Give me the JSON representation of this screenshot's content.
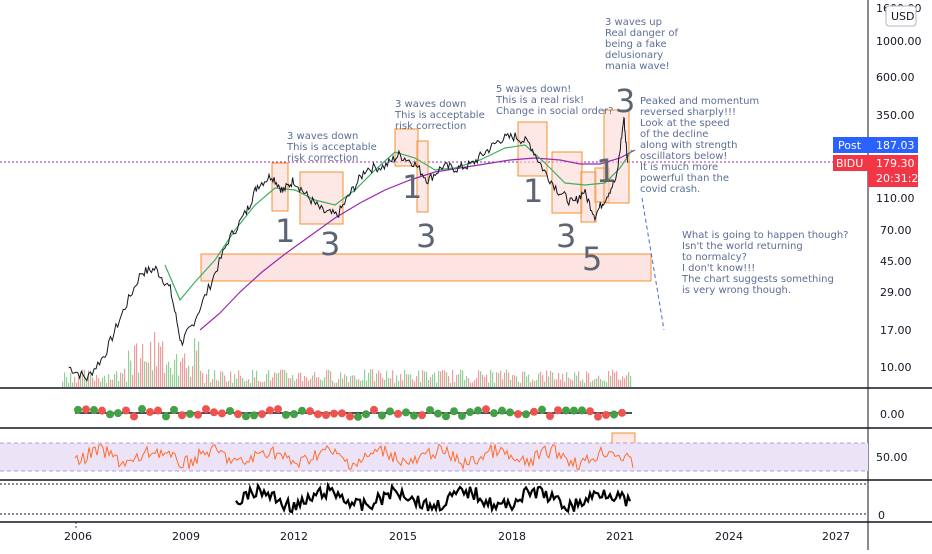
{
  "chart_data": [
    {
      "type": "line",
      "ticker": "BIDU",
      "currency": "USD",
      "price_scale": "log",
      "y_tick_labels": [
        "1600.00",
        "1000.00",
        "600.00",
        "350.00",
        "187.03",
        "110.00",
        "70.00",
        "45.00",
        "29.00",
        "17.00",
        "10.00"
      ],
      "x_tick_labels": [
        "2006",
        "2009",
        "2012",
        "2015",
        "2018",
        "2021",
        "2024",
        "2027"
      ],
      "price_badges": {
        "post_label": "Post",
        "post_value": "187.03",
        "ticker_label": "BIDU",
        "last_value": "179.30",
        "countdown": "20:31:20"
      },
      "series": [
        {
          "values_x": [
            2005.8,
            2006.3,
            2006.8,
            2007.3,
            2007.8,
            2008.2,
            2008.6,
            2008.9,
            2009.2,
            2009.7,
            2010.2,
            2010.7,
            2011.0,
            2011.4,
            2011.7,
            2012.0,
            2012.4,
            2012.8,
            2013.2,
            2013.6,
            2014.0,
            2014.5,
            2014.9,
            2015.3,
            2015.7,
            2016.1,
            2016.5,
            2016.9,
            2017.3,
            2017.7,
            2018.1,
            2018.5,
            2018.9,
            2019.3,
            2019.7,
            2020.0,
            2020.3,
            2020.6,
            2020.9,
            2021.1,
            2021.2
          ],
          "values_y": [
            10,
            8.5,
            12,
            22,
            38,
            40,
            30,
            14,
            18,
            32,
            60,
            90,
            130,
            150,
            120,
            140,
            110,
            90,
            85,
            120,
            165,
            170,
            200,
            180,
            140,
            170,
            165,
            175,
            210,
            250,
            260,
            235,
            160,
            120,
            100,
            120,
            85,
            110,
            145,
            340,
            179.3
          ]
        }
      ]
    },
    {
      "type": "line",
      "panel": "oscillator-zero-line",
      "y_tick_labels": [
        "0.00"
      ]
    },
    {
      "type": "line",
      "panel": "rsi",
      "y_tick_labels": [
        "50.00"
      ],
      "band": [
        30,
        70
      ]
    },
    {
      "type": "line",
      "panel": "third-oscillator",
      "y_tick_labels": [
        "0"
      ]
    }
  ],
  "annotations": {
    "a1": [
      "3 waves down",
      "This is acceptable",
      "risk correction"
    ],
    "a2": [
      "3 waves down",
      "This is acceptable",
      "risk correction"
    ],
    "a3": [
      "5 waves down!",
      "This is a real risk!",
      "Change in social order?"
    ],
    "a4": [
      "3 waves up",
      "Real danger of",
      "being a fake",
      "delusionary",
      "mania wave!"
    ],
    "a5": [
      "Peaked and momentum",
      "reversed sharply!!!",
      "Look at the speed",
      "of the decline",
      "along with strength",
      "oscillators below!",
      "It is much more",
      "powerful than the",
      "covid crash."
    ],
    "a6": [
      "What is going to happen though?",
      "Isn't the world returning",
      "to normalcy?",
      "I don't know!!!",
      "The chart suggests something",
      "is very wrong though."
    ],
    "wave_labels": [
      "1",
      "3",
      "1",
      "3",
      "1",
      "3",
      "5",
      "1",
      "3"
    ]
  },
  "colors": {
    "price": "#131722",
    "ma_fast": "#3fae60",
    "ma_slow": "#9b27b0",
    "box_orange": "#f3902d",
    "box_fill": "#fbd9d6",
    "rsi_line": "#ff6d2e",
    "rsi_band": "#ede3f7",
    "post_badge": "#2962ff",
    "last_badge": "#f23645",
    "annotation_text": "#5b6f94"
  }
}
